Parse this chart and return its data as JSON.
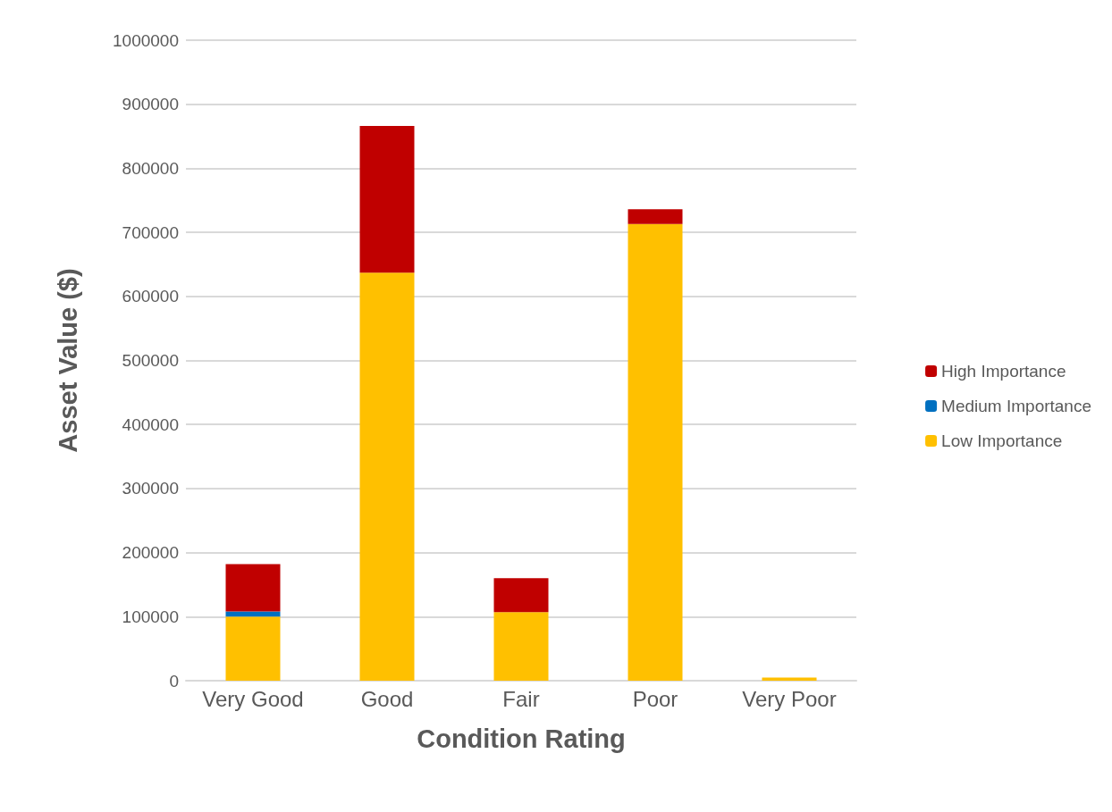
{
  "chart_data": {
    "type": "bar",
    "stacked": true,
    "xlabel": "Condition Rating",
    "ylabel": "Asset Value ($)",
    "categories": [
      "Very Good",
      "Good",
      "Fair",
      "Poor",
      "Very Poor"
    ],
    "series": [
      {
        "name": "Low Importance",
        "color": "#ffc000",
        "values": [
          100000,
          637000,
          107000,
          713000,
          5000
        ]
      },
      {
        "name": "Medium Importance",
        "color": "#0070c0",
        "values": [
          8000,
          null,
          null,
          null,
          null
        ]
      },
      {
        "name": "High Importance",
        "color": "#c00000",
        "values": [
          74000,
          229000,
          53000,
          23000,
          null
        ]
      }
    ],
    "ylim": [
      0,
      1000000
    ],
    "yticks": [
      0,
      100000,
      200000,
      300000,
      400000,
      500000,
      600000,
      700000,
      800000,
      900000,
      1000000
    ],
    "grid": "y",
    "legend": "right"
  }
}
